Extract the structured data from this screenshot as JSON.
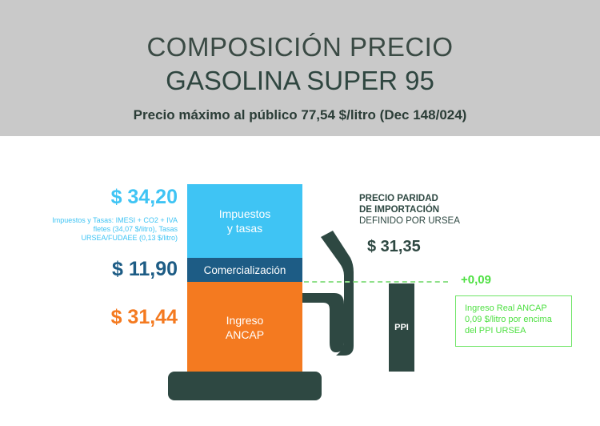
{
  "header": {
    "title_line1": "COMPOSICIÓN PRECIO",
    "title_line2": "GASOLINA SUPER 95",
    "subtitle": "Precio máximo al público 77,54 $/litro (Dec 148/024)"
  },
  "components": [
    {
      "label_line1": "Impuestos",
      "label_line2": "y tasas",
      "value": "$ 34,20",
      "color": "#3fc4f4",
      "note": "Impuestos y Tasas: IMESI + CO2  + IVA fletes (34,07 $/litro), Tasas URSEA/FUDAEE (0,13 $/litro)"
    },
    {
      "label_line1": "Comercialización",
      "value": "$ 11,90",
      "color": "#1d5c85"
    },
    {
      "label_line1": "Ingreso",
      "label_line2": "ANCAP",
      "value": "$ 31,44",
      "color": "#f47a20"
    }
  ],
  "ppi": {
    "heading_line1": "PRECIO PARIDAD",
    "heading_line2": "DE IMPORTACIÓN",
    "heading_line3": "DEFINIDO POR URSEA",
    "value": "$ 31,35",
    "bar_label": "PPI",
    "difference": "+0,09",
    "note_line1": "Ingreso Real ANCAP",
    "note_line2": "0,09 $/litro por encima",
    "note_line3": "del PPI URSEA",
    "color": "#2e4842",
    "accent": "#4fe043"
  }
}
